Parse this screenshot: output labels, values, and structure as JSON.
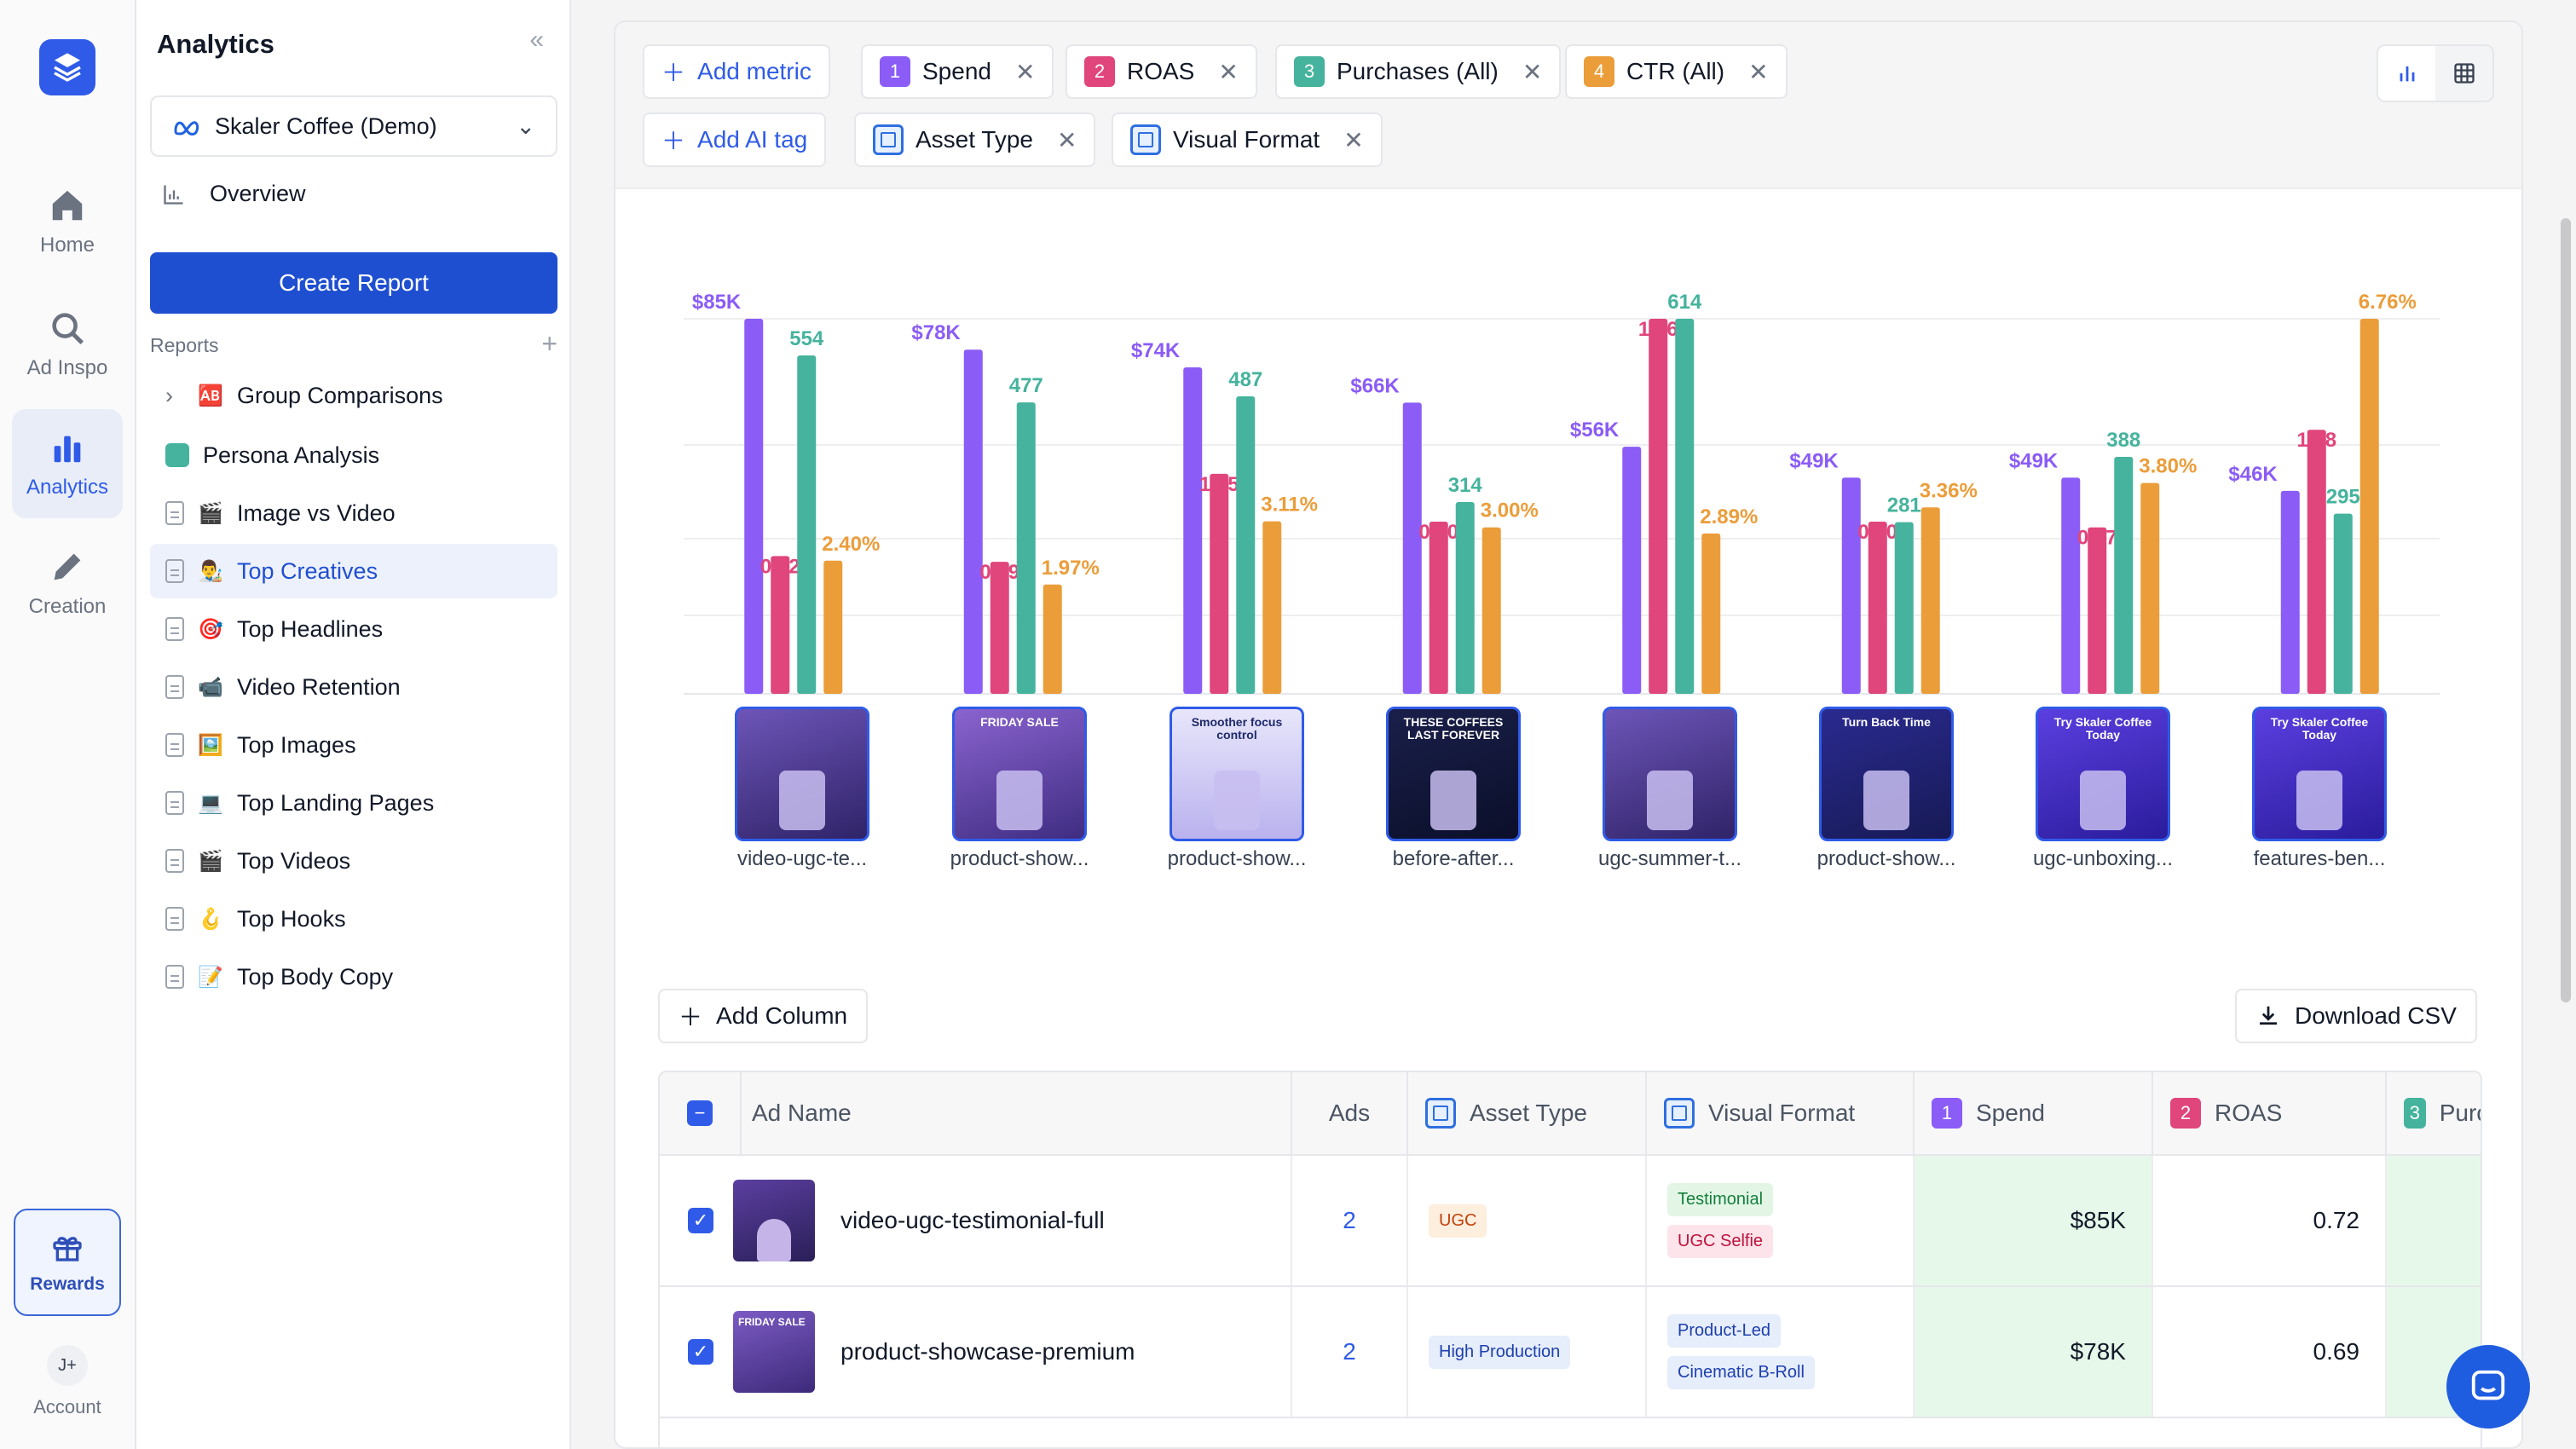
{
  "rail": {
    "items": [
      {
        "label": "Home",
        "icon": "home-icon"
      },
      {
        "label": "Ad Inspo",
        "icon": "search-icon"
      },
      {
        "label": "Analytics",
        "icon": "bar-chart-icon"
      },
      {
        "label": "Creation",
        "icon": "pencil-icon"
      }
    ],
    "rewards": "Rewards",
    "account_initials": "J+",
    "account": "Account"
  },
  "sidebar": {
    "title": "Analytics",
    "workspace": "Skaler Coffee (Demo)",
    "overview": "Overview",
    "create_report": "Create Report",
    "reports_label": "Reports",
    "reports": [
      {
        "label": "Group Comparisons",
        "emoji": "🆎"
      },
      {
        "label": "Persona Analysis",
        "emoji": ""
      },
      {
        "label": "Image vs Video",
        "emoji": "🎬"
      },
      {
        "label": "Top Creatives",
        "emoji": "👨‍🎨"
      },
      {
        "label": "Top Headlines",
        "emoji": "🎯"
      },
      {
        "label": "Video Retention",
        "emoji": "📹"
      },
      {
        "label": "Top Images",
        "emoji": "🖼️"
      },
      {
        "label": "Top Landing Pages",
        "emoji": "💻"
      },
      {
        "label": "Top Videos",
        "emoji": "🎬"
      },
      {
        "label": "Top Hooks",
        "emoji": "🪝"
      },
      {
        "label": "Top Body Copy",
        "emoji": "📝"
      }
    ]
  },
  "toolbar": {
    "add_metric": "Add metric",
    "metrics": [
      {
        "n": "1",
        "label": "Spend",
        "color": "#8b5cf6"
      },
      {
        "n": "2",
        "label": "ROAS",
        "color": "#e0457b"
      },
      {
        "n": "3",
        "label": "Purchases (All)",
        "color": "#45b39d"
      },
      {
        "n": "4",
        "label": "CTR (All)",
        "color": "#eb9d3a"
      }
    ],
    "add_ai_tag": "Add AI tag",
    "tags": [
      "Asset Type",
      "Visual Format"
    ]
  },
  "chart_data": {
    "type": "bar",
    "categories": [
      "video-ugc-te...",
      "product-show...",
      "product-show...",
      "before-after...",
      "ugc-summer-t...",
      "product-show...",
      "ugc-unboxing...",
      "features-ben..."
    ],
    "series": [
      {
        "name": "Spend",
        "color": "#8b5cf6",
        "values": [
          85,
          78,
          74,
          66,
          56,
          49,
          49,
          46
        ],
        "labels": [
          "$85K",
          "$78K",
          "$74K",
          "$66K",
          "$56K",
          "$49K",
          "$49K",
          "$46K"
        ]
      },
      {
        "name": "ROAS",
        "color": "#e0457b",
        "values": [
          0.72,
          0.69,
          1.15,
          0.9,
          1.96,
          0.9,
          0.87,
          1.38
        ],
        "labels": [
          "0.72",
          "0.69",
          "1.15",
          "0.90",
          "1.96",
          "0.90",
          "0.87",
          "1.38"
        ]
      },
      {
        "name": "Purchases (All)",
        "color": "#45b39d",
        "values": [
          554,
          477,
          487,
          314,
          614,
          281,
          388,
          295
        ],
        "labels": [
          "554",
          "477",
          "487",
          "314",
          "614",
          "281",
          "388",
          "295"
        ]
      },
      {
        "name": "CTR (All)",
        "color": "#eb9d3a",
        "values": [
          2.4,
          1.97,
          3.11,
          3.0,
          2.89,
          3.36,
          3.8,
          6.76
        ],
        "labels": [
          "2.40%",
          "1.97%",
          "3.11%",
          "3.00%",
          "2.89%",
          "3.36%",
          "3.80%",
          "6.76%"
        ]
      }
    ],
    "grid": true
  },
  "table": {
    "add_column": "Add Column",
    "download_csv": "Download CSV",
    "headers": {
      "ad_name": "Ad Name",
      "ads": "Ads",
      "asset_type": "Asset Type",
      "visual_format": "Visual Format",
      "spend": "Spend",
      "roas": "ROAS",
      "purchases": "Purchase"
    },
    "header_nums": {
      "spend": "1",
      "roas": "2",
      "purchases": "3"
    },
    "rows": [
      {
        "name": "video-ugc-testimonial-full",
        "ads": "2",
        "asset": "UGC",
        "formats": [
          "Testimonial",
          "UGC Selfie"
        ],
        "spend": "$85K",
        "roas": "0.72"
      },
      {
        "name": "product-showcase-premium",
        "ads": "2",
        "asset": "High Production",
        "formats": [
          "Product-Led",
          "Cinematic B-Roll"
        ],
        "spend": "$78K",
        "roas": "0.69"
      }
    ]
  },
  "thumbs": {
    "friday_sale": "FRIDAY SALE",
    "smoother": "Smoother focus control",
    "coffees": "THESE COFFEES LAST FOREVER",
    "turn_back": "Turn Back Time",
    "try_skaler": "Try Skaler Coffee Today"
  }
}
